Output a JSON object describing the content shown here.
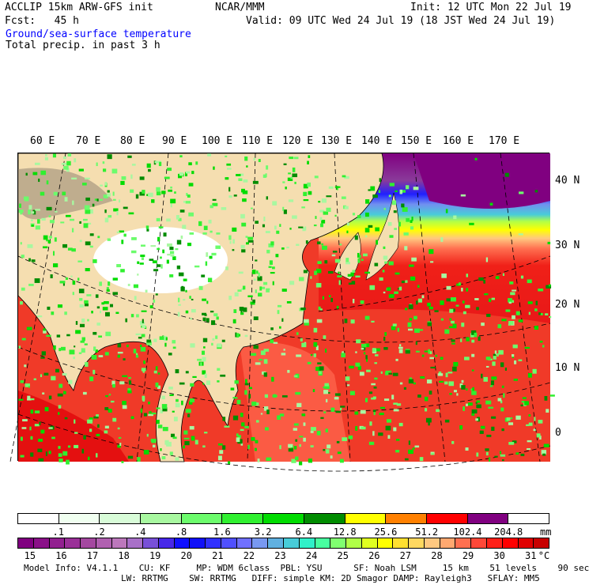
{
  "header": {
    "model_title": "ACCLIP 15km ARW-GFS init",
    "org": "NCAR/MMM",
    "init": "Init: 12 UTC Mon 22 Jul 19",
    "fcst": "Fcst:   45 h",
    "valid": "Valid: 09 UTC Wed 24 Jul 19 (18 JST Wed 24 Jul 19)",
    "field1": "Ground/sea-surface temperature",
    "field2": "Total precip. in past 3 h"
  },
  "map": {
    "lon_labels": [
      "60 E",
      "70 E",
      "80 E",
      "90 E",
      "100 E",
      "110 E",
      "120 E",
      "130 E",
      "140 E",
      "150 E",
      "160 E",
      "170 E"
    ],
    "lat_labels": [
      "40 N",
      "30 N",
      "20 N",
      "10 N",
      "0"
    ]
  },
  "precip_legend": {
    "colors": [
      "#ffffff",
      "#f0fff0",
      "#d8fcd8",
      "#a8f8a0",
      "#6cfc6c",
      "#30f030",
      "#00dc00",
      "#008c00",
      "#ffff00",
      "#ff8000",
      "#ff0000",
      "#800080",
      "#ffffff"
    ],
    "labels": [
      ".1",
      ".2",
      ".4",
      ".8",
      "1.6",
      "3.2",
      "6.4",
      "12.8",
      "25.6",
      "51.2",
      "102.4",
      "204.8"
    ],
    "unit": "mm"
  },
  "temp_legend": {
    "colors": [
      "#800080",
      "#8a1088",
      "#922090",
      "#9a3098",
      "#a448a0",
      "#b060b0",
      "#bc78bc",
      "#a870c8",
      "#7850d8",
      "#4828e8",
      "#1010ff",
      "#1010f8",
      "#3030ff",
      "#5050ff",
      "#7070ff",
      "#7898f0",
      "#60b0e0",
      "#48ccd8",
      "#30f0c8",
      "#48ffa0",
      "#80ff70",
      "#b0ff48",
      "#e0ff20",
      "#ffff00",
      "#ffe030",
      "#ffd860",
      "#ffc880",
      "#ffa870",
      "#ff7050",
      "#ff4838",
      "#ff2018",
      "#ff0000",
      "#e00000",
      "#c80000"
    ],
    "labels": [
      "15",
      "16",
      "17",
      "18",
      "19",
      "20",
      "21",
      "22",
      "23",
      "24",
      "25",
      "26",
      "27",
      "28",
      "29",
      "30",
      "31"
    ],
    "unit": "°C"
  },
  "footer": {
    "line1": "Model Info: V4.1.1    CU: KF     MP: WDM 6class  PBL: YSU      SF: Noah LSM     15 km    51 levels    90 sec",
    "line2": "LW: RRTMG    SW: RRTMG   DIFF: simple KM: 2D Smagor DAMP: Rayleigh3   SFLAY: MM5"
  }
}
